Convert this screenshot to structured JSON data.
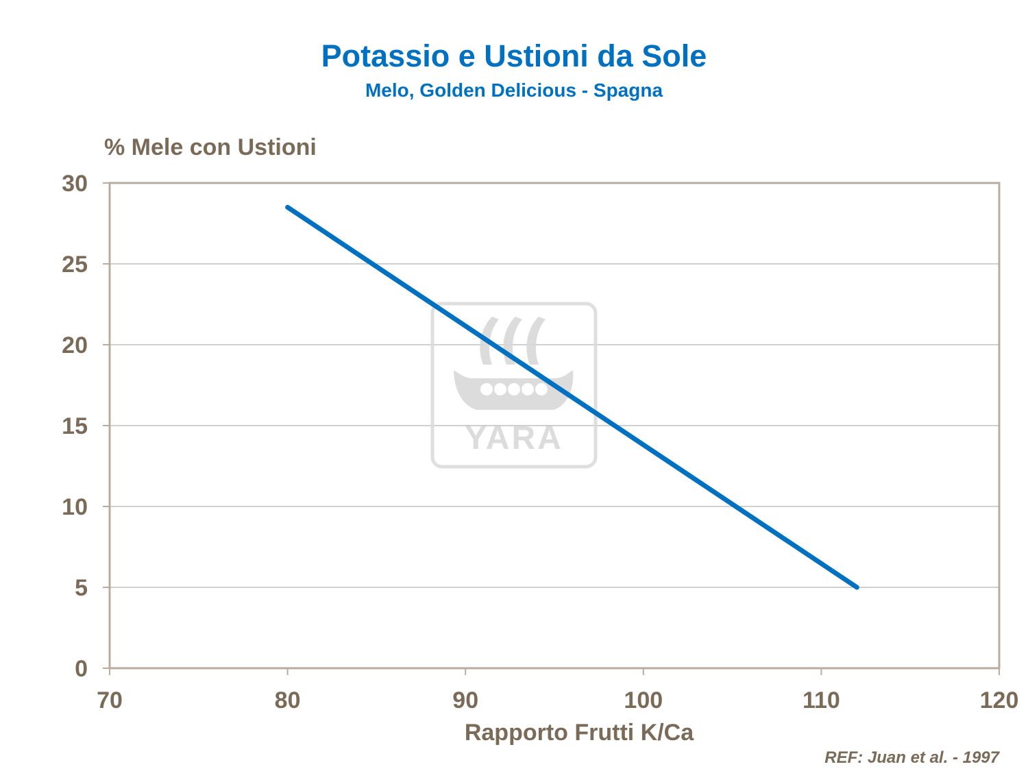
{
  "chart_data": {
    "type": "line",
    "title": "Potassio e Ustioni da Sole",
    "subtitle": "Melo, Golden Delicious  - Spagna",
    "xlabel": "Rapporto Frutti K/Ca",
    "ylabel": "% Mele con Ustioni",
    "xlim": [
      70,
      120
    ],
    "ylim": [
      0,
      30
    ],
    "x_ticks": [
      "70",
      "80",
      "90",
      "100",
      "110",
      "120"
    ],
    "y_ticks": [
      "0",
      "5",
      "10",
      "15",
      "20",
      "25",
      "30"
    ],
    "grid": "horizontal",
    "series": [
      {
        "color": "#0070c0",
        "points": [
          {
            "x": 80,
            "y": 28.5
          },
          {
            "x": 112,
            "y": 5
          }
        ]
      }
    ],
    "annotations": [
      "REF: Juan et al. - 1997"
    ]
  },
  "watermark": {
    "text": "YARA",
    "icon": "yara-viking-ship-logo"
  },
  "colors": {
    "title": "#0070c0",
    "text": "#7a6a58",
    "frame": "#b8aca0",
    "grid": "#a0a0a0",
    "line": "#0070c0",
    "watermark": "#d9d9d9"
  }
}
